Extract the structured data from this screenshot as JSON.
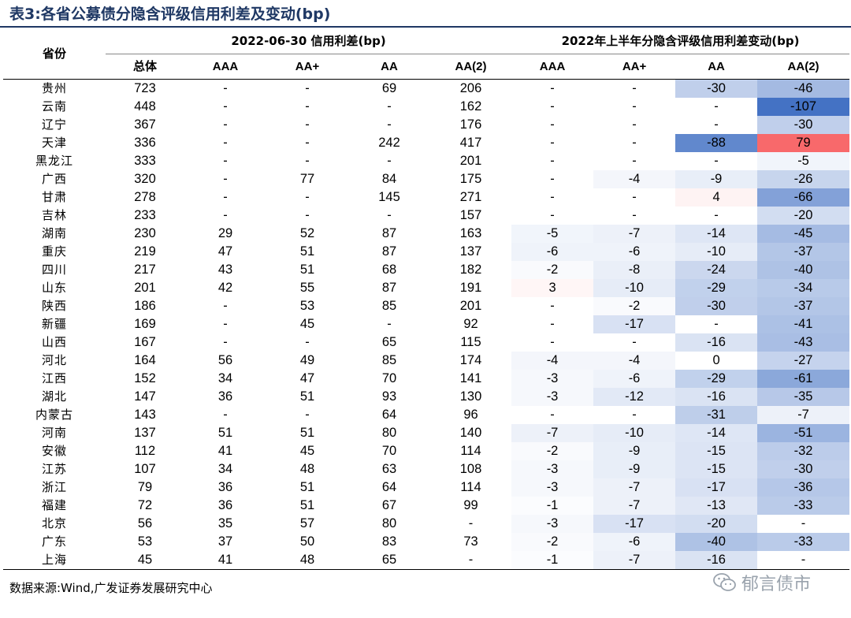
{
  "title": "表3:各省公募债分隐含评级信用利差及变动(bp)",
  "header": {
    "province_label": "省份",
    "group1": "2022-06-30 信用利差(bp)",
    "group2": "2022年上半年分隐含评级信用利差变动(bp)",
    "cols1": [
      "总体",
      "AAA",
      "AA+",
      "AA",
      "AA(2)"
    ],
    "cols2": [
      "AAA",
      "AA+",
      "AA",
      "AA(2)"
    ]
  },
  "rows": [
    {
      "p": "贵州",
      "v": [
        "723",
        "-",
        "-",
        "69",
        "206",
        "-",
        "-",
        "-30",
        "-46"
      ]
    },
    {
      "p": "云南",
      "v": [
        "448",
        "-",
        "-",
        "-",
        "162",
        "-",
        "-",
        "-",
        "-107"
      ]
    },
    {
      "p": "辽宁",
      "v": [
        "367",
        "-",
        "-",
        "-",
        "176",
        "-",
        "-",
        "-",
        "-30"
      ]
    },
    {
      "p": "天津",
      "v": [
        "336",
        "-",
        "-",
        "242",
        "417",
        "-",
        "-",
        "-88",
        "79"
      ]
    },
    {
      "p": "黑龙江",
      "v": [
        "333",
        "-",
        "-",
        "-",
        "201",
        "-",
        "-",
        "-",
        "-5"
      ]
    },
    {
      "p": "广西",
      "v": [
        "320",
        "-",
        "77",
        "84",
        "175",
        "-",
        "-4",
        "-9",
        "-26"
      ]
    },
    {
      "p": "甘肃",
      "v": [
        "278",
        "-",
        "-",
        "145",
        "271",
        "-",
        "-",
        "4",
        "-66"
      ]
    },
    {
      "p": "吉林",
      "v": [
        "233",
        "-",
        "-",
        "-",
        "157",
        "-",
        "-",
        "-",
        "-20"
      ]
    },
    {
      "p": "湖南",
      "v": [
        "230",
        "29",
        "52",
        "87",
        "163",
        "-5",
        "-7",
        "-14",
        "-45"
      ]
    },
    {
      "p": "重庆",
      "v": [
        "219",
        "47",
        "51",
        "87",
        "137",
        "-6",
        "-6",
        "-10",
        "-37"
      ]
    },
    {
      "p": "四川",
      "v": [
        "217",
        "43",
        "51",
        "68",
        "182",
        "-2",
        "-8",
        "-24",
        "-40"
      ]
    },
    {
      "p": "山东",
      "v": [
        "201",
        "42",
        "55",
        "87",
        "191",
        "3",
        "-10",
        "-29",
        "-34"
      ]
    },
    {
      "p": "陕西",
      "v": [
        "186",
        "-",
        "53",
        "85",
        "201",
        "-",
        "-2",
        "-30",
        "-37"
      ]
    },
    {
      "p": "新疆",
      "v": [
        "169",
        "-",
        "45",
        "-",
        "92",
        "-",
        "-17",
        "-",
        "-41"
      ]
    },
    {
      "p": "山西",
      "v": [
        "167",
        "-",
        "-",
        "65",
        "115",
        "-",
        "-",
        "-16",
        "-43"
      ]
    },
    {
      "p": "河北",
      "v": [
        "164",
        "56",
        "49",
        "85",
        "174",
        "-4",
        "-4",
        "0",
        "-27"
      ]
    },
    {
      "p": "江西",
      "v": [
        "152",
        "34",
        "47",
        "70",
        "141",
        "-3",
        "-6",
        "-29",
        "-61"
      ]
    },
    {
      "p": "湖北",
      "v": [
        "147",
        "36",
        "51",
        "93",
        "130",
        "-3",
        "-12",
        "-16",
        "-35"
      ]
    },
    {
      "p": "内蒙古",
      "v": [
        "143",
        "-",
        "-",
        "64",
        "96",
        "-",
        "-",
        "-31",
        "-7"
      ]
    },
    {
      "p": "河南",
      "v": [
        "137",
        "51",
        "51",
        "80",
        "140",
        "-7",
        "-10",
        "-14",
        "-51"
      ]
    },
    {
      "p": "安徽",
      "v": [
        "112",
        "41",
        "45",
        "70",
        "114",
        "-2",
        "-9",
        "-15",
        "-32"
      ]
    },
    {
      "p": "江苏",
      "v": [
        "107",
        "34",
        "48",
        "63",
        "108",
        "-3",
        "-9",
        "-15",
        "-30"
      ]
    },
    {
      "p": "浙江",
      "v": [
        "79",
        "36",
        "51",
        "64",
        "114",
        "-3",
        "-7",
        "-17",
        "-36"
      ]
    },
    {
      "p": "福建",
      "v": [
        "72",
        "36",
        "51",
        "67",
        "99",
        "-1",
        "-7",
        "-13",
        "-33"
      ]
    },
    {
      "p": "北京",
      "v": [
        "56",
        "35",
        "57",
        "80",
        "-",
        "-3",
        "-17",
        "-20",
        "-"
      ]
    },
    {
      "p": "广东",
      "v": [
        "53",
        "37",
        "50",
        "83",
        "73",
        "-2",
        "-6",
        "-40",
        "-33"
      ]
    },
    {
      "p": "上海",
      "v": [
        "45",
        "41",
        "48",
        "65",
        "-",
        "-1",
        "-7",
        "-16",
        "-"
      ]
    }
  ],
  "heat_scale": {
    "min": -107,
    "max": 79,
    "neg_color": "#4472c4",
    "pos_color": "#f8696b",
    "mid_color": "#ffffff"
  },
  "source": "数据来源:Wind,广发证券发展研究中心",
  "watermark": "郁言债市"
}
